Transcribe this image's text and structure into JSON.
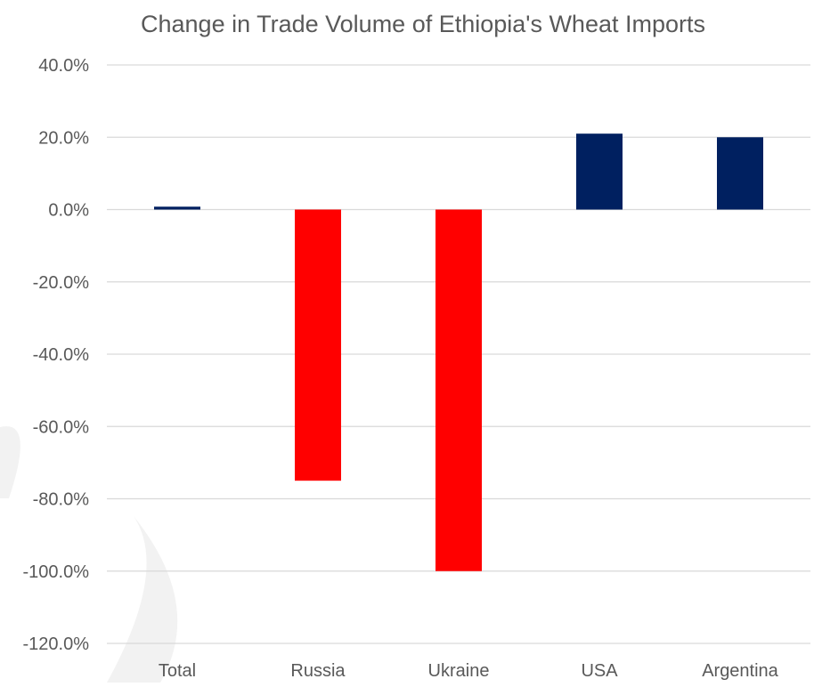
{
  "chart_data": {
    "type": "bar",
    "title": "Change in Trade Volume of Ethiopia's Wheat Imports",
    "xlabel": "",
    "ylabel": "",
    "categories": [
      "Total",
      "Russia",
      "Ukraine",
      "USA",
      "Argentina"
    ],
    "values": [
      0.8,
      -75.0,
      -100.0,
      21.0,
      20.0
    ],
    "ylim": [
      -120,
      40
    ],
    "y_ticks": [
      40,
      20,
      0,
      -20,
      -40,
      -60,
      -80,
      -100,
      -120
    ],
    "y_tick_labels": [
      "40.0%",
      "20.0%",
      "0.0%",
      "-20.0%",
      "-40.0%",
      "-60.0%",
      "-80.0%",
      "-100.0%",
      "-120.0%"
    ],
    "grid": true,
    "legend": "none",
    "colors": {
      "positive": "#002060",
      "negative": "#ff0000",
      "grid": "#d9d9d9",
      "text": "#595959"
    }
  }
}
